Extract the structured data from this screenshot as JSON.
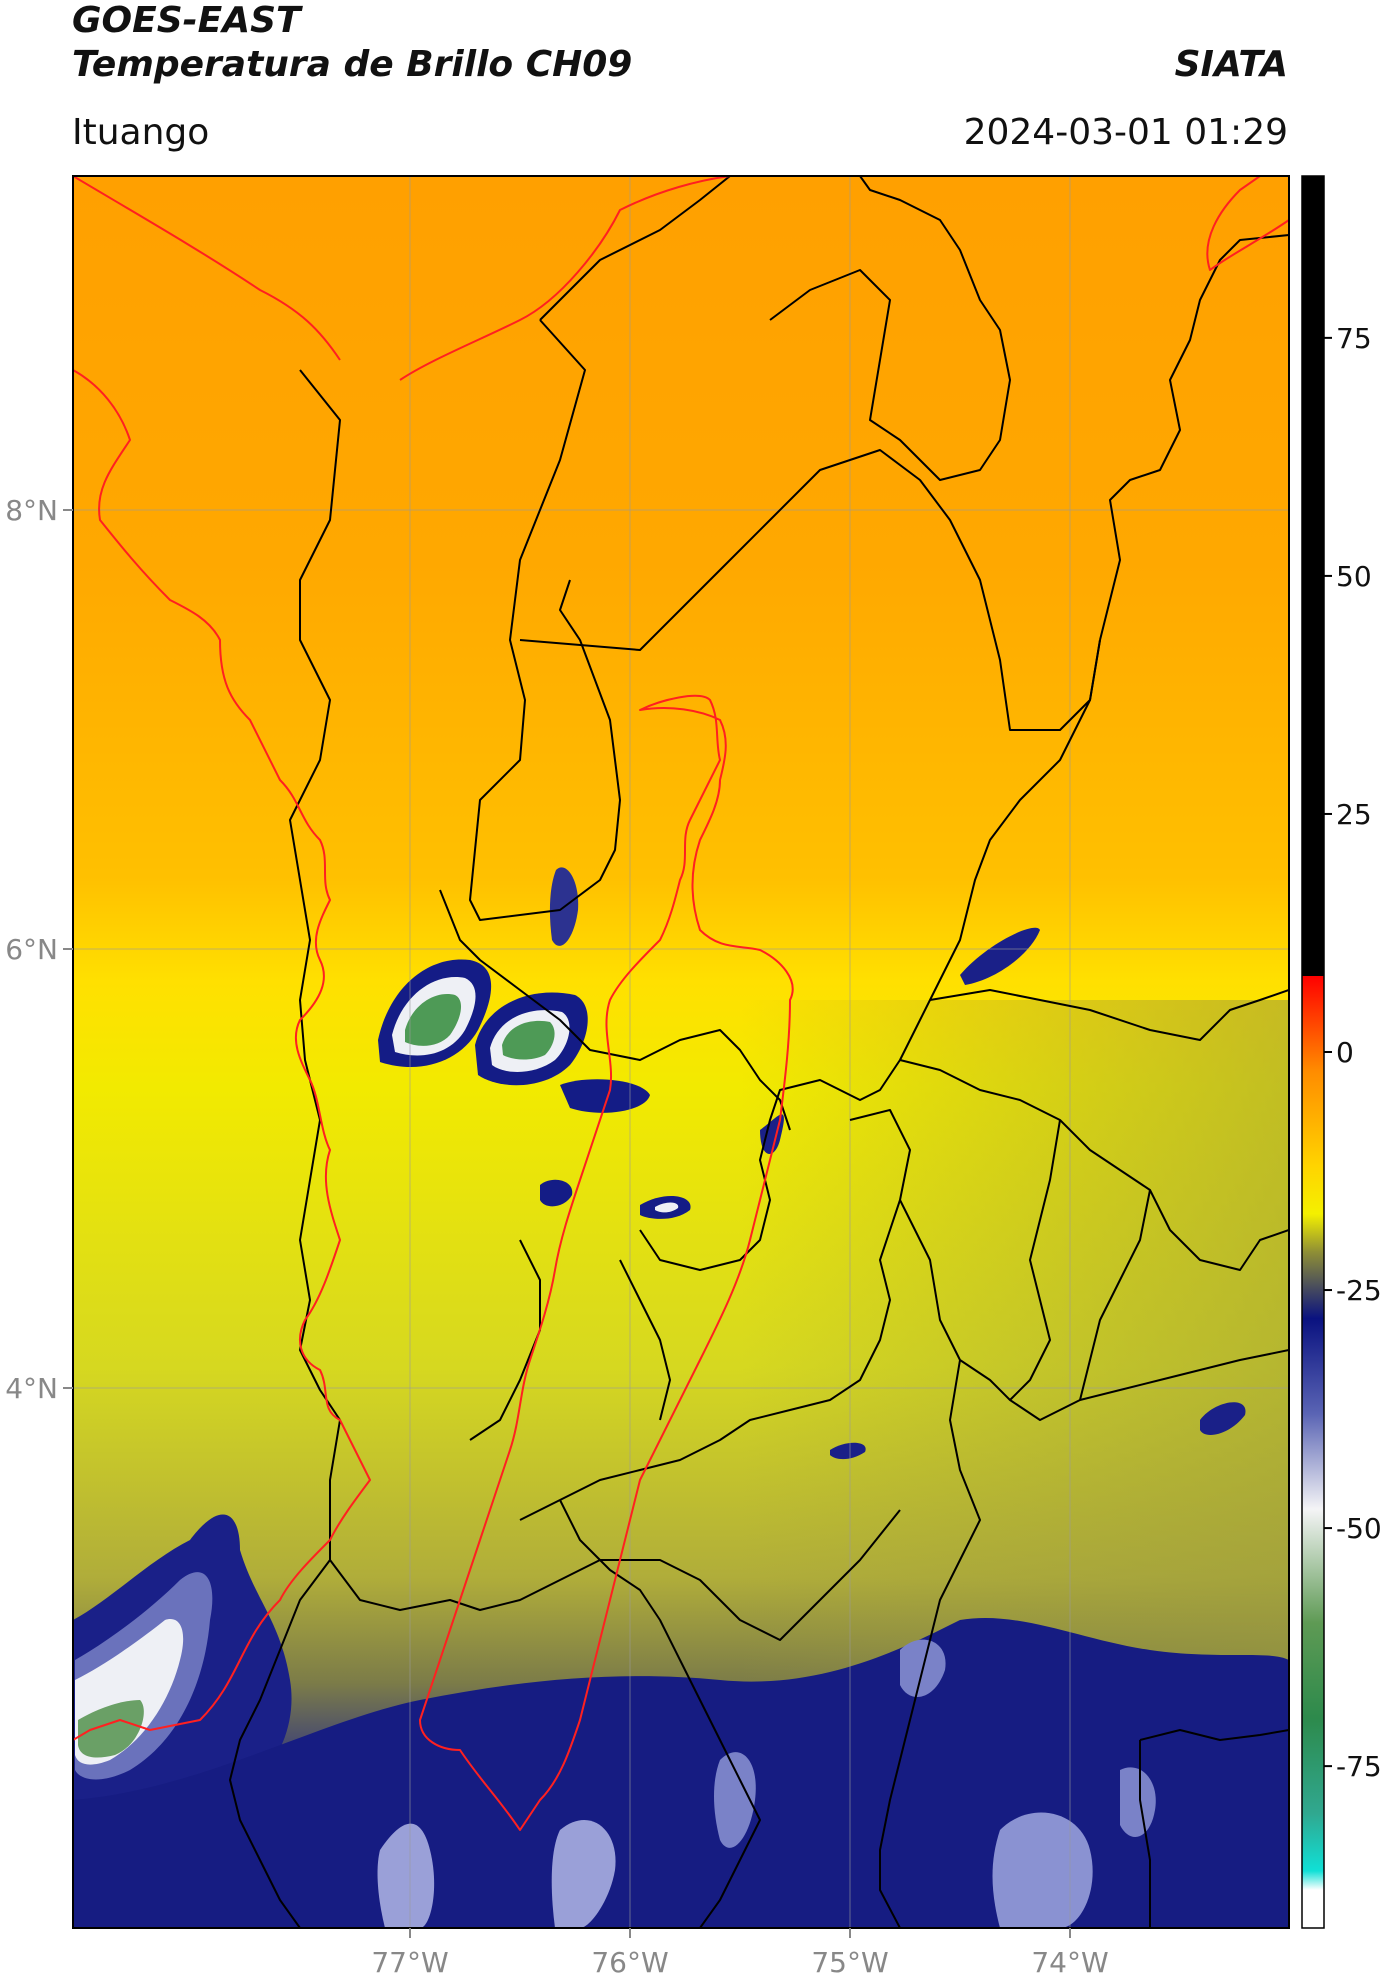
{
  "header": {
    "satellite": "GOES-EAST",
    "product": "Temperatura de Brillo CH09",
    "source": "SIATA",
    "region": "Ituango",
    "datetime": "2024-03-01 01:29"
  },
  "axes": {
    "lat_ticks": [
      "8°N",
      "6°N",
      "4°N"
    ],
    "lon_ticks": [
      "77°W",
      "76°W",
      "75°W",
      "74°W"
    ]
  },
  "colorbar": {
    "ticks": [
      "75",
      "50",
      "25",
      "0",
      "-25",
      "-50",
      "-75"
    ],
    "stops": [
      {
        "value": 92,
        "color": "#000000"
      },
      {
        "value": 8,
        "color": "#000000"
      },
      {
        "value": 8,
        "color": "#ff0000"
      },
      {
        "value": -2,
        "color": "#ff8c00"
      },
      {
        "value": -12,
        "color": "#ffd400"
      },
      {
        "value": -17,
        "color": "#f4f000"
      },
      {
        "value": -21,
        "color": "#8f8f35"
      },
      {
        "value": -28,
        "color": "#0a1280"
      },
      {
        "value": -38,
        "color": "#5a64b4"
      },
      {
        "value": -48,
        "color": "#f4f4f6"
      },
      {
        "value": -60,
        "color": "#5e9a54"
      },
      {
        "value": -70,
        "color": "#2d8a4c"
      },
      {
        "value": -80,
        "color": "#30a890"
      },
      {
        "value": -86,
        "color": "#10e0d6"
      },
      {
        "value": -88,
        "color": "#ffffff"
      },
      {
        "value": -92,
        "color": "#ffffff"
      }
    ]
  },
  "colors": {
    "region_outline": "#ff2020",
    "borders": "#000000",
    "gridlines": "#9a9a9a"
  }
}
